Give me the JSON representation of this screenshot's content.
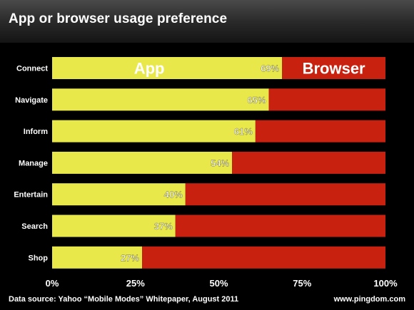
{
  "chart_data": {
    "type": "bar",
    "stacked": true,
    "orientation": "horizontal",
    "title": "App or browser usage preference",
    "categories": [
      "Connect",
      "Navigate",
      "Inform",
      "Manage",
      "Entertain",
      "Search",
      "Shop"
    ],
    "series": [
      {
        "name": "App",
        "values": [
          69,
          65,
          61,
          54,
          40,
          37,
          27
        ],
        "color": "#e8e84a"
      },
      {
        "name": "Browser",
        "values": [
          31,
          35,
          39,
          46,
          60,
          63,
          73
        ],
        "color": "#c9210f"
      }
    ],
    "data_labels": [
      "69%",
      "65%",
      "61%",
      "54%",
      "40%",
      "37%",
      "27%"
    ],
    "xlim": [
      0,
      100
    ],
    "x_ticks": [
      "0%",
      "25%",
      "50%",
      "75%",
      "100%"
    ],
    "xlabel": "",
    "ylabel": "",
    "grid": false,
    "legend_placement": "inside-top-bar"
  },
  "footer": {
    "source": "Data source: Yahoo “Mobile Modes” Whitepaper, August 2011",
    "credit": "www.pingdom.com"
  }
}
